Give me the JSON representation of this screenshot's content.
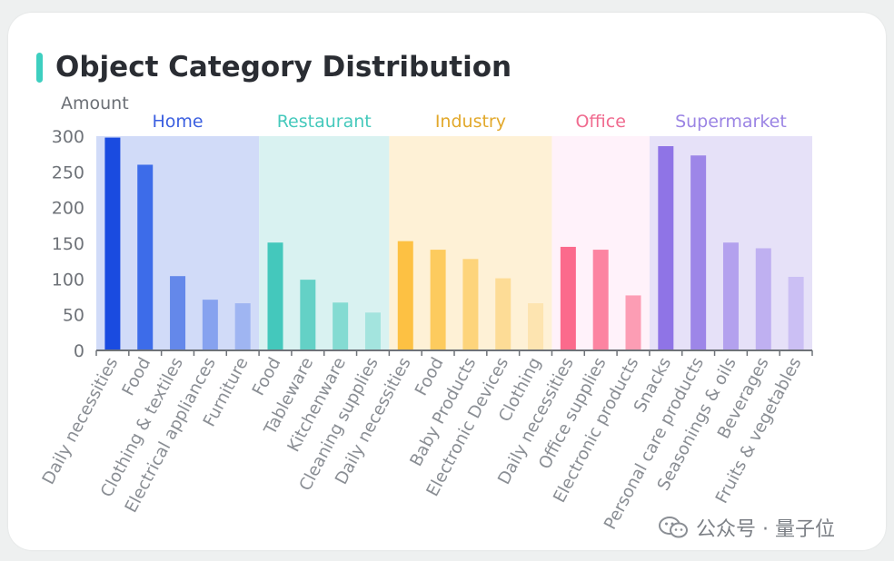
{
  "title": "Object Category Distribution",
  "watermark": "公众号 · 量子位",
  "chart_data": {
    "type": "bar",
    "ylabel": "Amount",
    "ylim": [
      0,
      300
    ],
    "yticks": [
      0,
      50,
      100,
      150,
      200,
      250,
      300
    ],
    "groups": [
      {
        "name": "Home",
        "label_color": "#3b5fe0",
        "bg": "#d1dbf8",
        "categories": [
          "Daily necessities",
          "Food",
          "Clothing & textiles",
          "Electrical appliances",
          "Furniture"
        ],
        "values": [
          298,
          260,
          104,
          71,
          66
        ],
        "colors": [
          "#1a4be0",
          "#3d6ce9",
          "#6488ea",
          "#86a2ef",
          "#9fb5f2"
        ]
      },
      {
        "name": "Restaurant",
        "label_color": "#45c9bc",
        "bg": "#d9f2f1",
        "categories": [
          "Food",
          "Tableware",
          "Kitchenware",
          "Cleaning supplies"
        ],
        "values": [
          151,
          99,
          67,
          53
        ],
        "colors": [
          "#44c8bc",
          "#64d1c6",
          "#84dbd2",
          "#a3e4de"
        ]
      },
      {
        "name": "Industry",
        "label_color": "#e2a82a",
        "bg": "#fef1d6",
        "categories": [
          "Daily necessities",
          "Food",
          "Baby Products",
          "Electronic Devices",
          "Clothing"
        ],
        "values": [
          153,
          141,
          128,
          101,
          66
        ],
        "colors": [
          "#fdc143",
          "#fdcb5e",
          "#fdd47b",
          "#fddc96",
          "#fde4b0"
        ]
      },
      {
        "name": "Office",
        "label_color": "#f06b8f",
        "bg": "#fff2fa",
        "categories": [
          "Daily necessities",
          "Office supplies",
          "Electronic products"
        ],
        "values": [
          145,
          141,
          77
        ],
        "colors": [
          "#fb6a8c",
          "#fc84a1",
          "#fc9db4"
        ]
      },
      {
        "name": "Supermarket",
        "label_color": "#9b84e4",
        "bg": "#e6e1f8",
        "categories": [
          "Snacks",
          "Personal care products",
          "Seasonings & oils",
          "Beverages",
          "Fruits & vegetables"
        ],
        "values": [
          286,
          273,
          151,
          143,
          103
        ],
        "colors": [
          "#8f74e6",
          "#9d86e8",
          "#b3a1ee",
          "#bfb0f1",
          "#cbbff4"
        ]
      }
    ]
  }
}
